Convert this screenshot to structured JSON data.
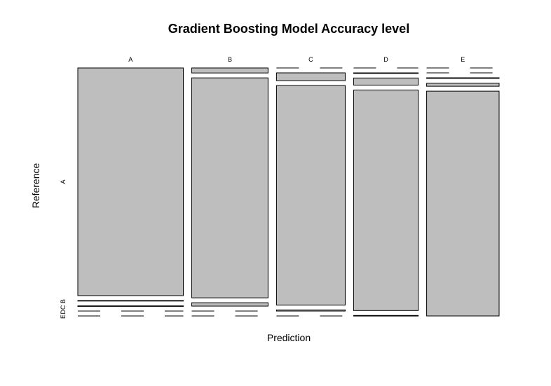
{
  "chart_data": {
    "type": "mosaic",
    "title": "Gradient Boosting Model Accuracy level",
    "xlabel": "Prediction",
    "ylabel": "Reference",
    "x_categories": [
      "A",
      "B",
      "C",
      "D",
      "E"
    ],
    "y_categories": [
      "A",
      "B",
      "C",
      "D",
      "E"
    ],
    "y_tick_labels": [
      "A",
      "B",
      "C",
      "D",
      "E"
    ],
    "tile_color": "#bebebe",
    "counts": [
      [
        1570,
        3,
        2,
        0,
        0
      ],
      [
        25,
        1097,
        17,
        0,
        0
      ],
      [
        0,
        35,
        986,
        5,
        0
      ],
      [
        0,
        1,
        30,
        931,
        2
      ],
      [
        0,
        0,
        3,
        14,
        1065
      ]
    ]
  }
}
